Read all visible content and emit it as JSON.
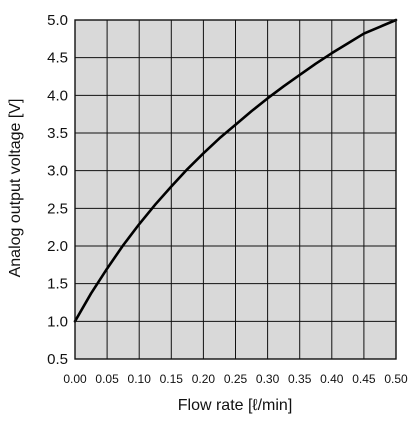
{
  "chart_data": {
    "type": "line",
    "title": "",
    "xlabel": "Flow rate [ℓ/min]",
    "ylabel": "Analog output voltage [V]",
    "xlim": [
      0.0,
      0.5
    ],
    "ylim": [
      0.5,
      5.0
    ],
    "x_ticks": [
      "0.00",
      "0.05",
      "0.10",
      "0.15",
      "0.20",
      "0.25",
      "0.30",
      "0.35",
      "0.40",
      "0.45",
      "0.50"
    ],
    "y_ticks": [
      "0.5",
      "1.0",
      "1.5",
      "2.0",
      "2.5",
      "3.0",
      "3.5",
      "4.0",
      "4.5",
      "5.0"
    ],
    "grid": true,
    "legend": "none",
    "colors": {
      "plot_background": "#d9d9d9",
      "grid": "#111111",
      "line": "#000000"
    },
    "series": [
      {
        "x": [
          0.0,
          0.025,
          0.05,
          0.075,
          0.1,
          0.125,
          0.15,
          0.175,
          0.2,
          0.225,
          0.25,
          0.275,
          0.3,
          0.325,
          0.35,
          0.375,
          0.4,
          0.425,
          0.45,
          0.475,
          0.5
        ],
        "y": [
          1.0,
          1.37,
          1.7,
          2.01,
          2.29,
          2.55,
          2.79,
          3.02,
          3.23,
          3.43,
          3.61,
          3.79,
          3.96,
          4.12,
          4.27,
          4.42,
          4.56,
          4.69,
          4.82,
          4.91,
          5.0
        ]
      }
    ]
  }
}
